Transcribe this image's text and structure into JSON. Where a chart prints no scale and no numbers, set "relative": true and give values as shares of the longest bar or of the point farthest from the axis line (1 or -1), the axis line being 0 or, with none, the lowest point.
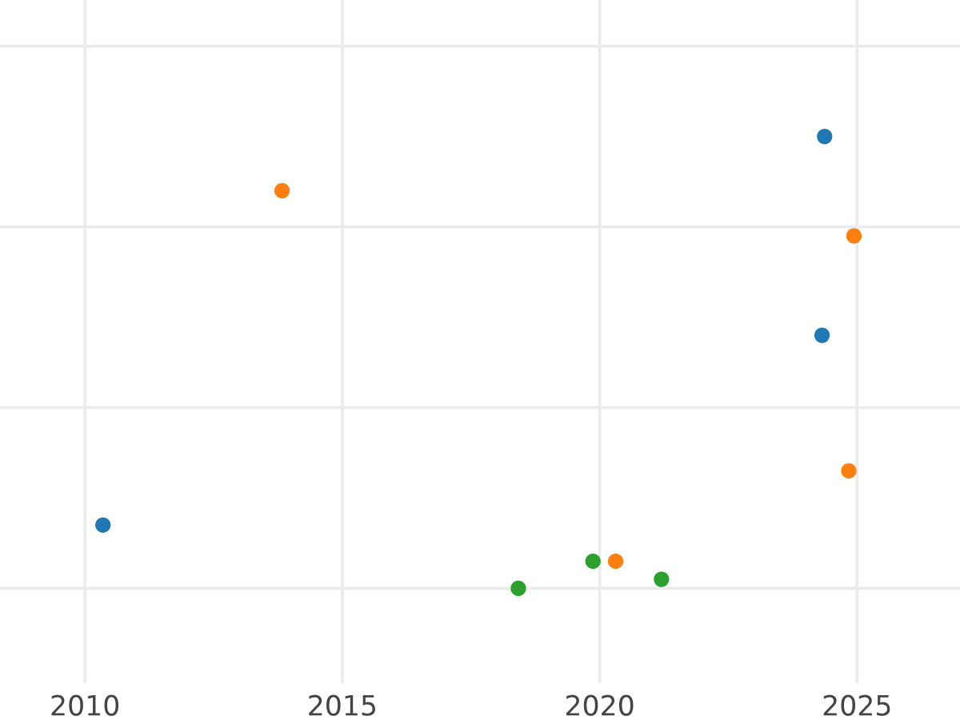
{
  "chart_data": {
    "type": "scatter",
    "relative": true,
    "marker": "circle",
    "grid": true,
    "tick_labels": "x",
    "xlim": [
      2008.35,
      2027
    ],
    "xticks": [
      2010,
      2015,
      2020,
      2025
    ],
    "series": [
      {
        "color": "#1f77b4",
        "x": [
          2010.35,
          2024.32,
          2024.37
        ],
        "values": [
          0.14,
          0.56,
          1
        ]
      },
      {
        "color": "#ff7f0e",
        "x": [
          2013.83,
          2024.94,
          2024.84,
          2020.31
        ],
        "values": [
          0.88,
          0.78,
          0.26,
          0.06
        ]
      },
      {
        "color": "#2ca02c",
        "x": [
          2018.42,
          2019.87,
          2021.2
        ],
        "values": [
          0,
          0.06,
          0.02
        ]
      }
    ]
  }
}
